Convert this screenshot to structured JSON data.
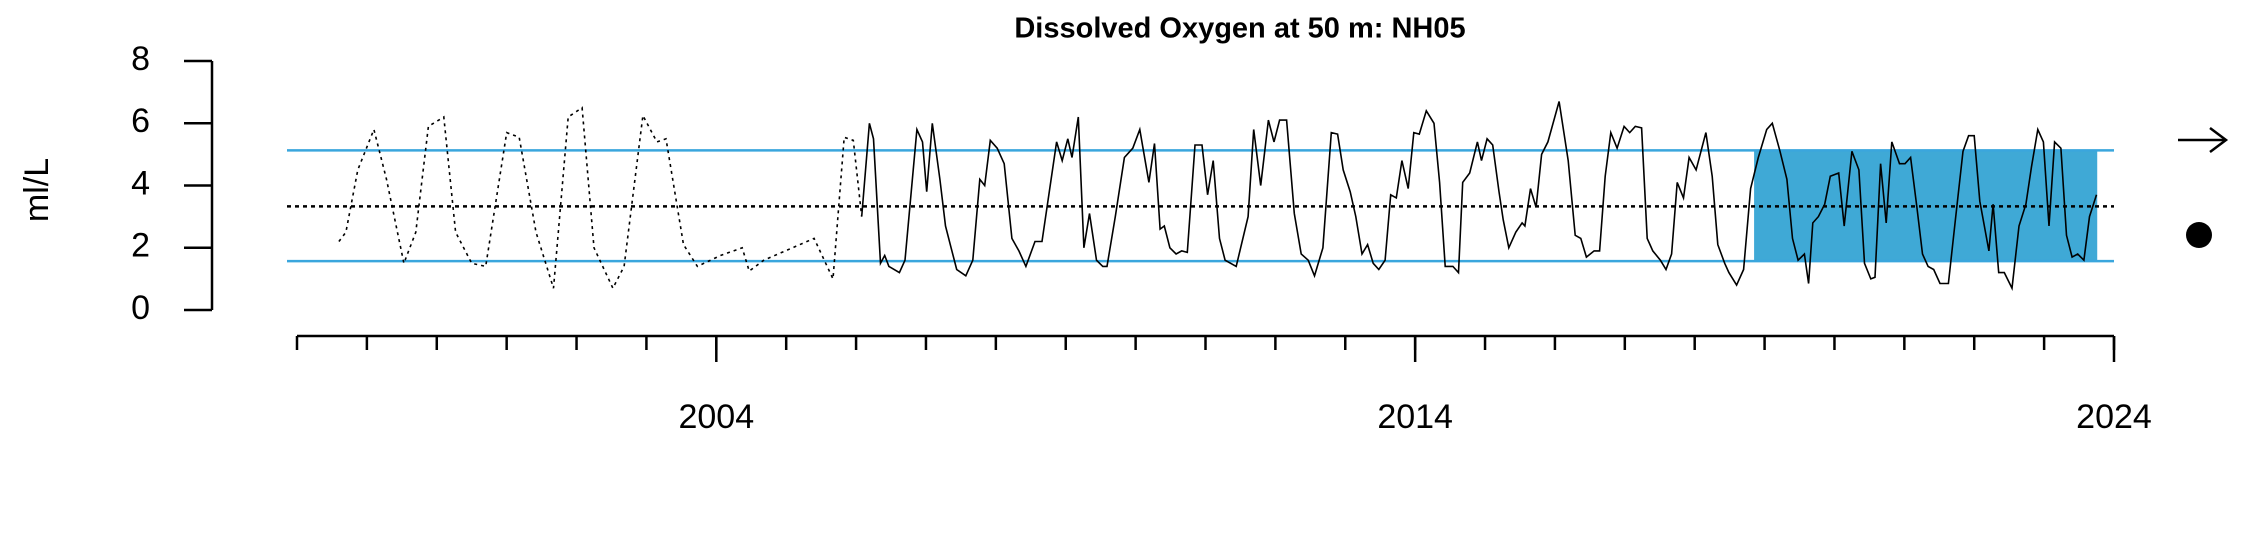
{
  "chart_data": {
    "type": "line",
    "title": "Dissolved Oxygen at 50 m: NH05",
    "y_label": "ml/L",
    "xlim": [
      1998,
      2024
    ],
    "ylim": [
      0,
      8
    ],
    "xticks": [
      2004,
      2014,
      2024
    ],
    "xminor_ticks": [
      1998,
      1999,
      2000,
      2001,
      2002,
      2003,
      2004,
      2005,
      2006,
      2007,
      2008,
      2009,
      2010,
      2011,
      2012,
      2013,
      2014,
      2015,
      2016,
      2017,
      2018,
      2019,
      2020,
      2021,
      2022,
      2023,
      2024
    ],
    "yticks": [
      0,
      2,
      4,
      6,
      8
    ],
    "mean": 3.33,
    "upper": 5.13,
    "lower": 1.57,
    "band_color": "#3aa6dd",
    "shade_x": [
      2018.85,
      2023.76
    ],
    "shade_color": "#3fa9d6",
    "series": [
      {
        "color": "#000000",
        "dash": "dotted",
        "x": [
          1998.6,
          1998.7,
          1998.87,
          1999.1,
          1999.28,
          1999.53,
          1999.7,
          1999.88,
          2000.1,
          2000.27,
          2000.5,
          2000.7,
          2001.0,
          2001.18,
          2001.42,
          2001.67,
          2001.88,
          2002.08,
          2002.25,
          2002.52,
          2002.68,
          2002.95,
          2003.15,
          2003.28,
          2003.53,
          2003.73,
          2004.06,
          2004.37,
          2004.47,
          2004.68,
          2005.4,
          2005.67,
          2005.83,
          2005.96,
          2006.08
        ],
        "values": [
          2.2,
          2.5,
          4.5,
          5.8,
          4.2,
          1.5,
          2.5,
          5.9,
          6.2,
          2.5,
          1.5,
          1.4,
          5.7,
          5.55,
          2.5,
          0.7,
          6.2,
          6.5,
          2.0,
          0.7,
          1.4,
          6.25,
          5.4,
          5.5,
          2.1,
          1.4,
          1.75,
          2.0,
          1.25,
          1.6,
          2.3,
          1.0,
          5.55,
          5.45,
          3.0
        ]
      },
      {
        "color": "#000000",
        "dash": "solid",
        "x": [
          2006.08,
          2006.19,
          2006.25,
          2006.35,
          2006.41,
          2006.47,
          2006.62,
          2006.7,
          2006.87,
          2006.95,
          2007.01,
          2007.09,
          2007.2,
          2007.28,
          2007.36,
          2007.44,
          2007.57,
          2007.67,
          2007.77,
          2007.84,
          2007.92,
          2008.02,
          2008.12,
          2008.23,
          2008.33,
          2008.43,
          2008.56,
          2008.66,
          2008.87,
          2008.95,
          2009.03,
          2009.09,
          2009.18,
          2009.26,
          2009.34,
          2009.44,
          2009.53,
          2009.59,
          2009.71,
          2009.84,
          2009.96,
          2010.06,
          2010.19,
          2010.27,
          2010.35,
          2010.41,
          2010.49,
          2010.58,
          2010.66,
          2010.74,
          2010.85,
          2010.95,
          2011.03,
          2011.11,
          2011.2,
          2011.28,
          2011.44,
          2011.61,
          2011.69,
          2011.79,
          2011.9,
          2011.98,
          2012.06,
          2012.16,
          2012.27,
          2012.37,
          2012.47,
          2012.56,
          2012.68,
          2012.8,
          2012.89,
          2012.97,
          2013.07,
          2013.15,
          2013.24,
          2013.32,
          2013.4,
          2013.48,
          2013.57,
          2013.65,
          2013.73,
          2013.81,
          2013.9,
          2013.98,
          2014.06,
          2014.16,
          2014.27,
          2014.35,
          2014.43,
          2014.54,
          2014.62,
          2014.68,
          2014.78,
          2014.89,
          2014.95,
          2015.03,
          2015.11,
          2015.2,
          2015.26,
          2015.34,
          2015.44,
          2015.53,
          2015.57,
          2015.65,
          2015.73,
          2015.81,
          2015.9,
          2016.06,
          2016.19,
          2016.29,
          2016.37,
          2016.45,
          2016.56,
          2016.64,
          2016.72,
          2016.8,
          2016.89,
          2016.99,
          2017.07,
          2017.15,
          2017.24,
          2017.32,
          2017.4,
          2017.51,
          2017.59,
          2017.67,
          2017.75,
          2017.84,
          2017.92,
          2018.02,
          2018.16,
          2018.25,
          2018.33,
          2018.43,
          2018.49,
          2018.6,
          2018.7,
          2018.8,
          2018.91,
          2019.03,
          2019.11,
          2019.22,
          2019.32,
          2019.4,
          2019.48,
          2019.57,
          2019.63,
          2019.69,
          2019.77,
          2019.86,
          2019.94,
          2020.06,
          2020.14,
          2020.25,
          2020.35,
          2020.43,
          2020.52,
          2020.58,
          2020.66,
          2020.74,
          2020.82,
          2020.93,
          2021.01,
          2021.09,
          2021.18,
          2021.26,
          2021.34,
          2021.42,
          2021.51,
          2021.63,
          2021.73,
          2021.84,
          2021.92,
          2022.0,
          2022.08,
          2022.21,
          2022.27,
          2022.35,
          2022.43,
          2022.54,
          2022.64,
          2022.74,
          2022.82,
          2022.91,
          2022.99,
          2023.07,
          2023.15,
          2023.24,
          2023.32,
          2023.4,
          2023.48,
          2023.57,
          2023.65,
          2023.75
        ],
        "values": [
          3.0,
          6.0,
          5.5,
          1.5,
          1.75,
          1.4,
          1.2,
          1.6,
          5.8,
          5.4,
          3.8,
          6.0,
          4.2,
          2.7,
          2.0,
          1.3,
          1.1,
          1.6,
          4.2,
          4.0,
          5.45,
          5.2,
          4.7,
          2.3,
          1.9,
          1.4,
          2.2,
          2.2,
          5.4,
          4.8,
          5.5,
          4.9,
          6.2,
          2.0,
          3.1,
          1.6,
          1.4,
          1.4,
          3.0,
          4.9,
          5.2,
          5.8,
          4.1,
          5.35,
          2.6,
          2.7,
          2.0,
          1.8,
          1.9,
          1.85,
          5.3,
          5.3,
          3.7,
          4.8,
          2.3,
          1.6,
          1.4,
          3.0,
          5.8,
          4.0,
          6.1,
          5.4,
          6.1,
          6.1,
          3.1,
          1.8,
          1.6,
          1.1,
          2.0,
          5.7,
          5.65,
          4.5,
          3.8,
          3.0,
          1.8,
          2.1,
          1.5,
          1.3,
          1.6,
          3.7,
          3.6,
          4.8,
          3.9,
          5.7,
          5.65,
          6.4,
          6.0,
          4.1,
          1.4,
          1.4,
          1.2,
          4.1,
          4.4,
          5.4,
          4.8,
          5.5,
          5.3,
          3.8,
          2.9,
          2.0,
          2.5,
          2.8,
          2.7,
          3.9,
          3.3,
          5.0,
          5.4,
          6.7,
          4.8,
          2.4,
          2.3,
          1.7,
          1.9,
          1.9,
          4.3,
          5.7,
          5.2,
          5.9,
          5.7,
          5.9,
          5.85,
          2.3,
          1.9,
          1.6,
          1.3,
          1.8,
          4.1,
          3.6,
          4.9,
          4.5,
          5.7,
          4.3,
          2.1,
          1.5,
          1.2,
          0.8,
          1.3,
          3.9,
          4.9,
          5.8,
          6.0,
          5.1,
          4.2,
          2.3,
          1.6,
          1.8,
          0.85,
          2.8,
          3.0,
          3.4,
          4.3,
          4.4,
          2.7,
          5.1,
          4.5,
          1.5,
          1.0,
          1.05,
          4.7,
          2.8,
          5.4,
          4.7,
          4.7,
          4.9,
          3.3,
          1.8,
          1.4,
          1.3,
          0.85,
          0.85,
          2.9,
          5.1,
          5.6,
          5.6,
          3.5,
          1.9,
          3.4,
          1.2,
          1.2,
          0.7,
          2.7,
          3.4,
          4.6,
          5.8,
          5.4,
          2.7,
          5.4,
          5.2,
          2.4,
          1.7,
          1.8,
          1.6,
          3.0,
          3.7
        ]
      }
    ]
  }
}
